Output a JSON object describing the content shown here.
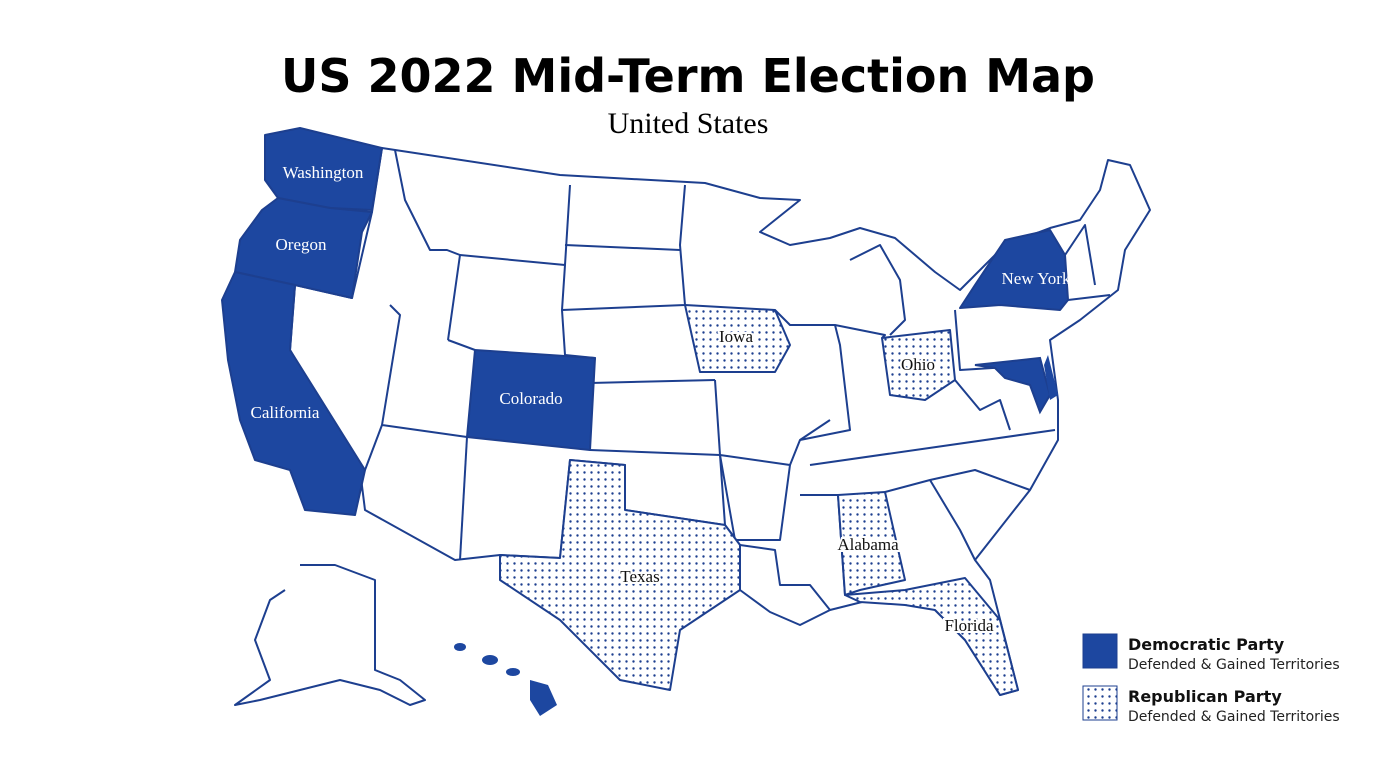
{
  "title": "US 2022 Mid-Term Election Map",
  "subtitle": "United States",
  "parties": [
    {
      "name": "Democratic Party",
      "note": "Defended & Gained Territories",
      "states": [
        "Washington",
        "Oregon",
        "California",
        "Colorado",
        "New York"
      ]
    },
    {
      "name": "Republican Party",
      "note": "Defended & Gained Territories",
      "states": [
        "Iowa",
        "Ohio",
        "Texas",
        "Alabama",
        "Florida"
      ]
    }
  ]
}
